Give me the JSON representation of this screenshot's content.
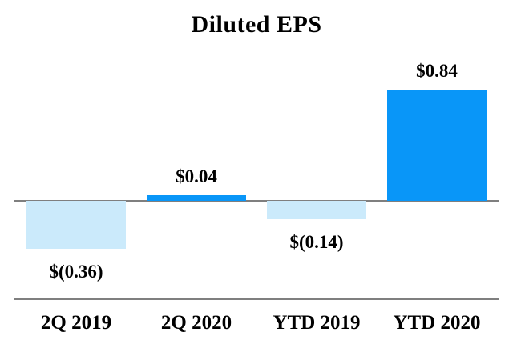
{
  "title": "Diluted EPS",
  "chart_data": {
    "type": "bar",
    "title": "Diluted EPS",
    "xlabel": "",
    "ylabel": "",
    "categories": [
      "2Q 2019",
      "2Q 2020",
      "YTD 2019",
      "YTD 2020"
    ],
    "values": [
      -0.36,
      0.04,
      -0.14,
      0.84
    ],
    "data_labels": [
      "$(0.36)",
      "$0.04",
      "$(0.14)",
      "$0.84"
    ],
    "baseline": 0,
    "ylim": [
      -0.45,
      0.95
    ],
    "grid": false,
    "legend": false,
    "colors": {
      "positive_bar": "#0996f8",
      "negative_bar": "#cbeafb",
      "axis_line": "#7f7f7f",
      "text": "#000000",
      "background": "#ffffff"
    }
  }
}
